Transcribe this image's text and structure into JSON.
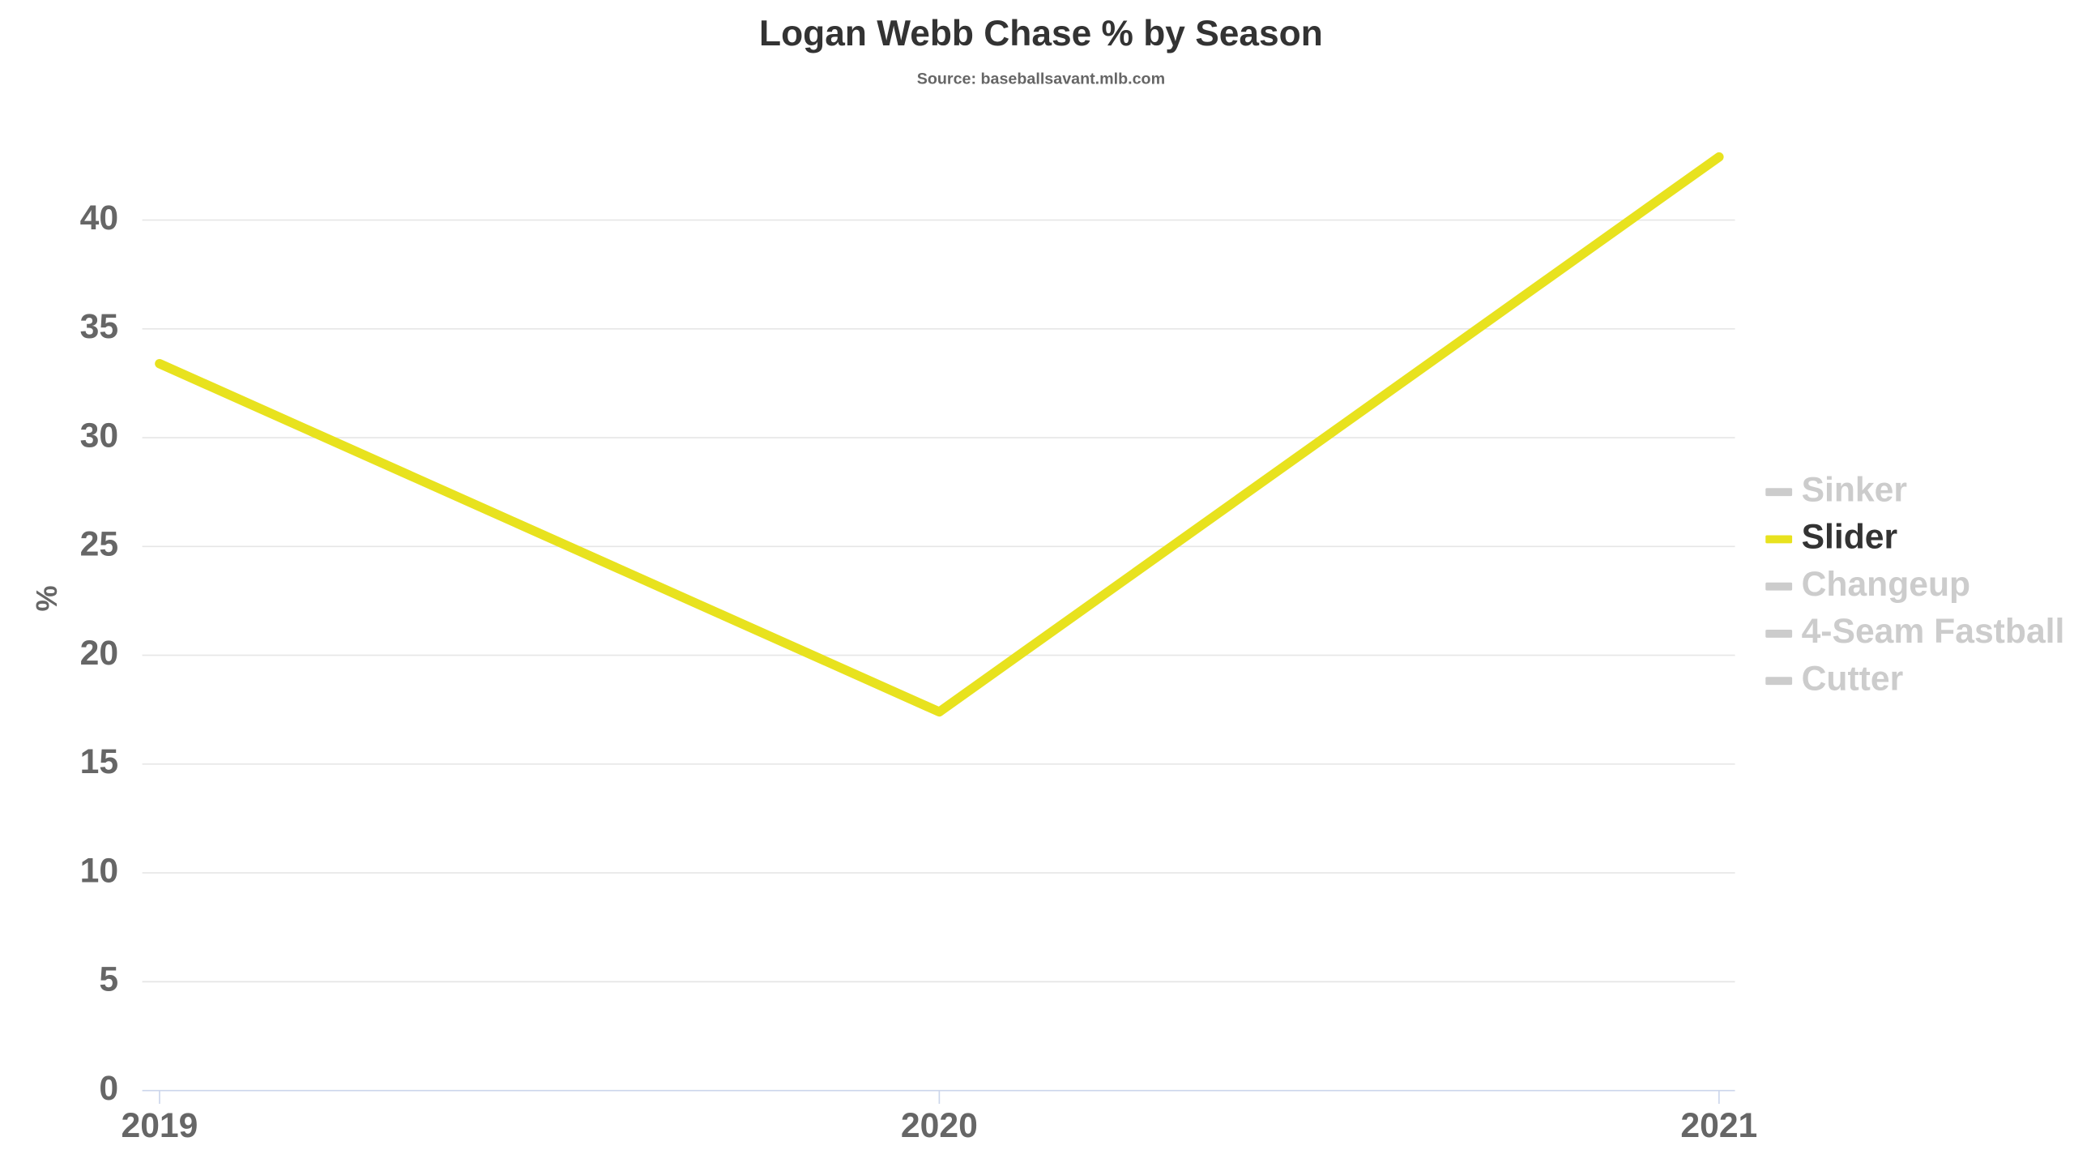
{
  "chart_data": {
    "type": "line",
    "title": "Logan Webb Chase % by Season",
    "subtitle": "Source: baseballsavant.mlb.com",
    "y_label": "%",
    "categories": [
      "2019",
      "2020",
      "2021"
    ],
    "series": [
      {
        "name": "Sinker",
        "color": "#cccccc",
        "visible": false
      },
      {
        "name": "Slider",
        "color": "#e8e21e",
        "visible": true,
        "values": [
          33.4,
          17.4,
          42.9
        ]
      },
      {
        "name": "Changeup",
        "color": "#cccccc",
        "visible": false
      },
      {
        "name": "4-Seam Fastball",
        "color": "#cccccc",
        "visible": false
      },
      {
        "name": "Cutter",
        "color": "#cccccc",
        "visible": false
      }
    ],
    "ylim": [
      0,
      42.9
    ],
    "yticks": [
      0,
      5,
      10,
      15,
      20,
      25,
      30,
      35,
      40
    ],
    "grid": true,
    "legend": "right"
  }
}
